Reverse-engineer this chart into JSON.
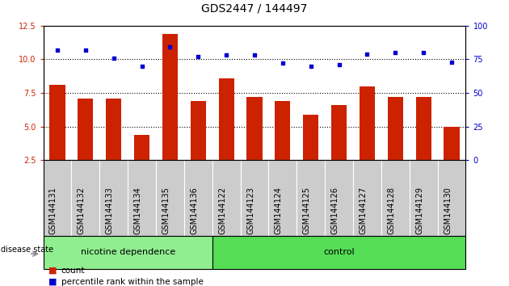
{
  "title": "GDS2447 / 144497",
  "categories": [
    "GSM144131",
    "GSM144132",
    "GSM144133",
    "GSM144134",
    "GSM144135",
    "GSM144136",
    "GSM144122",
    "GSM144123",
    "GSM144124",
    "GSM144125",
    "GSM144126",
    "GSM144127",
    "GSM144128",
    "GSM144129",
    "GSM144130"
  ],
  "bar_values": [
    8.1,
    7.1,
    7.1,
    4.4,
    11.9,
    6.9,
    8.6,
    7.2,
    6.9,
    5.9,
    6.6,
    8.0,
    7.2,
    7.2,
    5.0
  ],
  "scatter_values": [
    82,
    82,
    76,
    70,
    84,
    77,
    78,
    78,
    72,
    70,
    71,
    79,
    80,
    80,
    73
  ],
  "bar_color": "#cc2200",
  "scatter_color": "#0000cc",
  "ylim_left": [
    2.5,
    12.5
  ],
  "ylim_right": [
    0,
    100
  ],
  "yticks_left": [
    2.5,
    5.0,
    7.5,
    10.0,
    12.5
  ],
  "yticks_right": [
    0,
    25,
    50,
    75,
    100
  ],
  "grid_lines": [
    5.0,
    7.5,
    10.0
  ],
  "group1_label": "nicotine dependence",
  "group2_label": "control",
  "group1_count": 6,
  "group2_count": 9,
  "disease_state_label": "disease state",
  "legend_bar_label": "count",
  "legend_scatter_label": "percentile rank within the sample",
  "group1_color": "#90ee90",
  "group2_color": "#55dd55",
  "sample_box_color": "#cccccc",
  "sample_box_edge_color": "#ffffff",
  "title_fontsize": 10,
  "tick_fontsize": 7,
  "label_fontsize": 8,
  "legend_fontsize": 7.5,
  "bar_width": 0.55
}
